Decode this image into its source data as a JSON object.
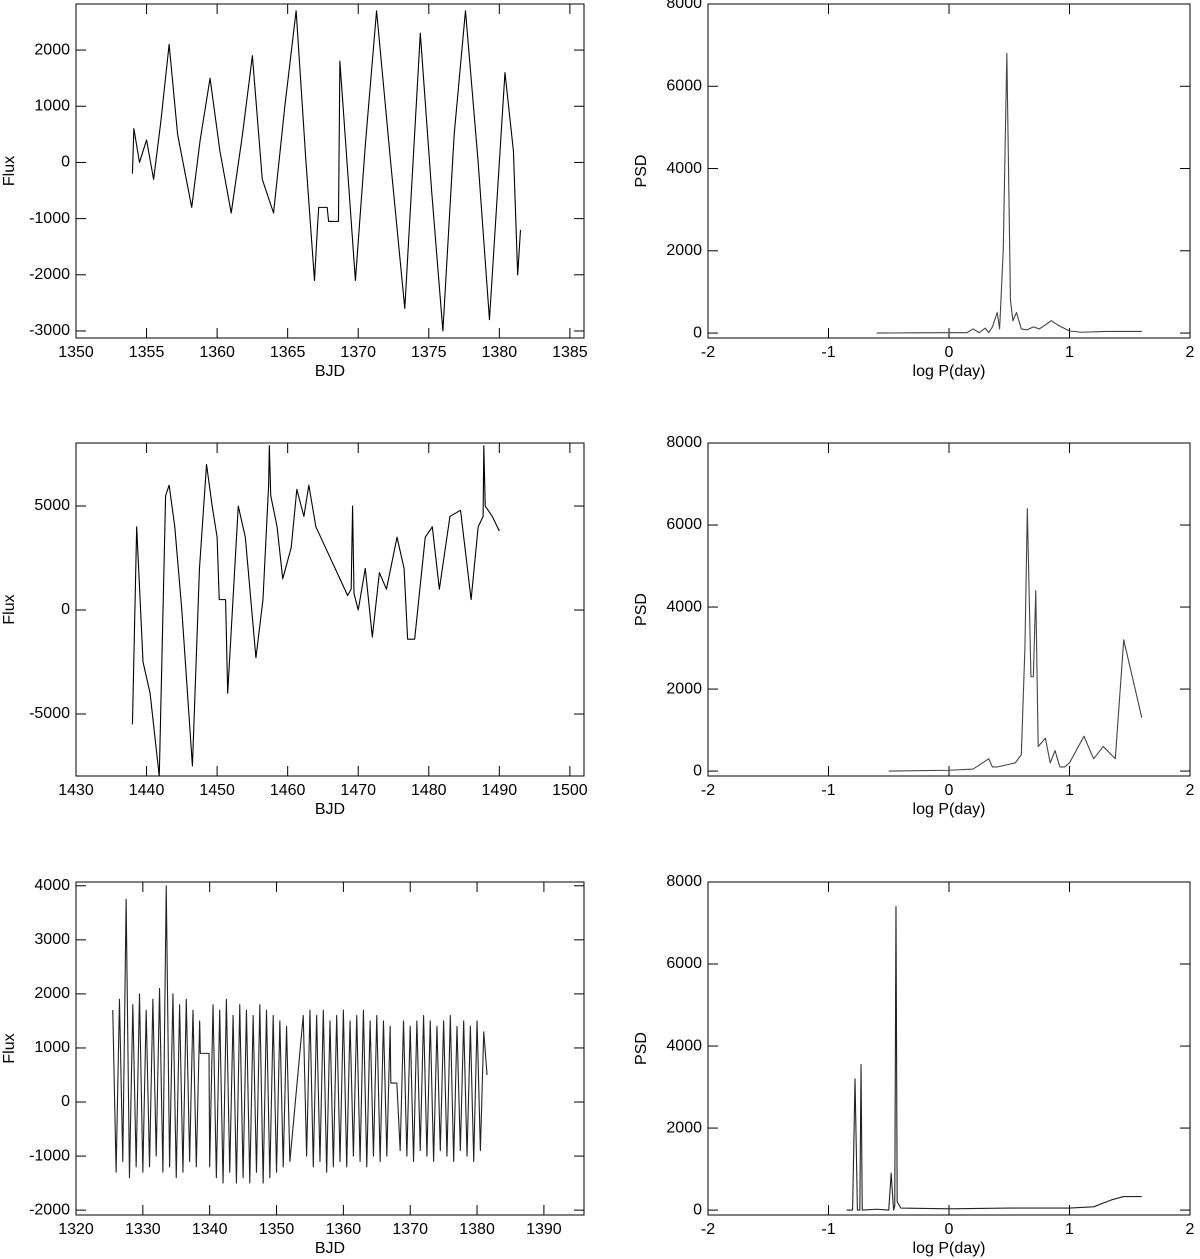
{
  "chart_data": [
    {
      "type": "line",
      "xlabel": "BJD",
      "ylabel": "Flux",
      "color": "#000000",
      "xlim": [
        1350,
        1386
      ],
      "ylim": [
        -3125,
        2820
      ],
      "xticks": [
        1350,
        1355,
        1360,
        1365,
        1370,
        1375,
        1380,
        1385
      ],
      "yticks": [
        -3000,
        -2000,
        -1000,
        0,
        1000,
        2000
      ],
      "x": [
        1354,
        1354.1,
        1354.5,
        1355,
        1355.5,
        1356,
        1356.6,
        1357.2,
        1358.2,
        1358.8,
        1359.5,
        1360.2,
        1361,
        1361.8,
        1362.5,
        1363.2,
        1364,
        1364.8,
        1365.6,
        1366.3,
        1366.9,
        1367.1,
        1367.2,
        1367.8,
        1367.9,
        1368.6,
        1368.7,
        1369.8,
        1370.5,
        1371.3,
        1372.3,
        1373.3,
        1374.4,
        1375.2,
        1376,
        1376.8,
        1377.6,
        1378.5,
        1379.3,
        1380.4,
        1381,
        1381.3,
        1381.5
      ],
      "values": [
        -200,
        600,
        0,
        400,
        -300,
        700,
        2100,
        500,
        -800,
        400,
        1500,
        200,
        -900,
        500,
        1900,
        -300,
        -900,
        1000,
        2700,
        0,
        -2100,
        -1200,
        -800,
        -800,
        -1050,
        -1050,
        1800,
        -2100,
        300,
        2700,
        0,
        -2600,
        2300,
        -500,
        -3000,
        500,
        2700,
        0,
        -2800,
        1600,
        200,
        -2000,
        -1200
      ]
    },
    {
      "type": "line",
      "xlabel": "log P(day)",
      "ylabel": "PSD",
      "color": "#444444",
      "xlim": [
        -2,
        2
      ],
      "ylim": [
        -120,
        8000
      ],
      "xticks": [
        -2,
        -1,
        0,
        1,
        2
      ],
      "yticks": [
        0,
        2000,
        4000,
        6000,
        8000
      ],
      "x": [
        -0.6,
        -0.3,
        0,
        0.15,
        0.2,
        0.25,
        0.3,
        0.33,
        0.36,
        0.4,
        0.42,
        0.45,
        0.48,
        0.51,
        0.53,
        0.56,
        0.6,
        0.65,
        0.7,
        0.75,
        0.8,
        0.85,
        0.9,
        1.0,
        1.1,
        1.3,
        1.6
      ],
      "values": [
        0,
        5,
        10,
        10,
        100,
        10,
        120,
        10,
        150,
        500,
        100,
        2000,
        6800,
        800,
        300,
        500,
        100,
        80,
        150,
        100,
        200,
        300,
        200,
        50,
        20,
        40,
        40
      ]
    },
    {
      "type": "line",
      "xlabel": "BJD",
      "ylabel": "Flux",
      "color": "#000000",
      "xlim": [
        1430,
        1502
      ],
      "ylim": [
        -7980,
        8030
      ],
      "xticks": [
        1430,
        1440,
        1450,
        1460,
        1470,
        1480,
        1490,
        1500
      ],
      "yticks": [
        -5000,
        0,
        5000
      ],
      "x": [
        1438,
        1438.6,
        1439.5,
        1440.5,
        1441.8,
        1442.7,
        1443.2,
        1444,
        1445,
        1446.5,
        1447.5,
        1448.5,
        1449.3,
        1450,
        1450.3,
        1451.2,
        1451.5,
        1453,
        1454,
        1455.5,
        1456.5,
        1457.3,
        1457.4,
        1457.6,
        1458.5,
        1459.3,
        1460.5,
        1461.3,
        1462.3,
        1463,
        1464,
        1468.5,
        1469,
        1469.2,
        1469.4,
        1470,
        1471,
        1472,
        1473,
        1474,
        1475.5,
        1476.5,
        1477,
        1478,
        1479.5,
        1480.5,
        1481.5,
        1483,
        1484.5,
        1486,
        1487,
        1487.7,
        1487.8,
        1488,
        1489,
        1490
      ],
      "values": [
        -5500,
        4000,
        -2500,
        -4000,
        -8000,
        5500,
        6000,
        4000,
        0,
        -7500,
        2000,
        7000,
        5000,
        3500,
        500,
        500,
        -4000,
        5000,
        3500,
        -2300,
        500,
        6000,
        7900,
        5500,
        4000,
        1500,
        3000,
        5800,
        4500,
        6000,
        4000,
        700,
        1000,
        5000,
        800,
        0,
        2000,
        -1300,
        1800,
        1000,
        3500,
        2000,
        -1400,
        -1400,
        3500,
        4000,
        1000,
        4500,
        4800,
        500,
        4000,
        4500,
        7900,
        5000,
        4500,
        3800
      ]
    },
    {
      "type": "line",
      "xlabel": "log P(day)",
      "ylabel": "PSD",
      "color": "#444444",
      "xlim": [
        -2,
        2
      ],
      "ylim": [
        -120,
        8000
      ],
      "xticks": [
        -2,
        -1,
        0,
        1,
        2
      ],
      "yticks": [
        0,
        2000,
        4000,
        6000,
        8000
      ],
      "x": [
        -0.5,
        0,
        0.2,
        0.33,
        0.36,
        0.4,
        0.55,
        0.6,
        0.63,
        0.65,
        0.68,
        0.7,
        0.72,
        0.74,
        0.77,
        0.8,
        0.84,
        0.88,
        0.92,
        0.96,
        1.0,
        1.12,
        1.2,
        1.28,
        1.38,
        1.45,
        1.6
      ],
      "values": [
        0,
        20,
        50,
        300,
        100,
        100,
        200,
        400,
        3000,
        6400,
        2300,
        2300,
        4400,
        600,
        700,
        800,
        200,
        500,
        100,
        100,
        200,
        850,
        300,
        600,
        300,
        3200,
        1300
      ]
    },
    {
      "type": "line",
      "xlabel": "BJD",
      "ylabel": "Flux",
      "color": "#222222",
      "xlim": [
        1320,
        1396
      ],
      "ylim": [
        -2090,
        4070
      ],
      "xticks": [
        1320,
        1330,
        1340,
        1350,
        1360,
        1370,
        1380,
        1390
      ],
      "yticks": [
        -2000,
        -1000,
        0,
        1000,
        2000,
        3000,
        4000
      ],
      "x": [
        1325.5,
        1326,
        1326.5,
        1327,
        1327.5,
        1328,
        1328.5,
        1329,
        1329.5,
        1330,
        1330.5,
        1331,
        1331.5,
        1332,
        1332.5,
        1333,
        1333.5,
        1334,
        1334.5,
        1335,
        1335.5,
        1336,
        1336.5,
        1337,
        1337.5,
        1338,
        1338.5,
        1338.6,
        1339.9,
        1340,
        1340.5,
        1341,
        1341.5,
        1342,
        1342.5,
        1343,
        1343.5,
        1344,
        1344.5,
        1345,
        1345.5,
        1346,
        1346.5,
        1347,
        1347.5,
        1348,
        1348.5,
        1349,
        1349.5,
        1350,
        1350.5,
        1351,
        1351.5,
        1352,
        1354,
        1354.5,
        1355,
        1355.5,
        1356,
        1356.5,
        1357,
        1357.5,
        1358,
        1358.5,
        1359,
        1359.5,
        1360,
        1360.5,
        1361,
        1361.5,
        1362,
        1362.5,
        1363,
        1363.5,
        1364,
        1364.5,
        1365,
        1365.5,
        1366,
        1366.5,
        1367,
        1367.1,
        1368,
        1368.5,
        1369,
        1369.5,
        1370,
        1370.5,
        1371,
        1371.5,
        1372,
        1372.5,
        1373,
        1373.5,
        1374,
        1374.5,
        1375,
        1375.5,
        1376,
        1376.5,
        1377,
        1377.5,
        1378,
        1378.5,
        1379,
        1379.5,
        1380,
        1380.5,
        1381,
        1381.5
      ],
      "values": [
        1700,
        -1300,
        1900,
        -1100,
        3750,
        -1400,
        1800,
        -1200,
        2000,
        -1300,
        1700,
        -1200,
        1900,
        -1000,
        2100,
        -1300,
        4000,
        -1200,
        2000,
        -1400,
        1800,
        -1300,
        1900,
        -1100,
        1700,
        -1200,
        1500,
        900,
        900,
        -1200,
        1800,
        -1400,
        1700,
        -1500,
        1900,
        -1300,
        1600,
        -1500,
        1800,
        -1400,
        1700,
        -1500,
        1600,
        -1300,
        1800,
        -1500,
        1700,
        -1400,
        1600,
        -1300,
        1500,
        -1200,
        1400,
        -1100,
        1600,
        -1000,
        1700,
        -1200,
        1600,
        -1100,
        1700,
        -1300,
        1500,
        -1200,
        1600,
        -1100,
        1700,
        -1200,
        1500,
        -1000,
        1600,
        -1100,
        1700,
        -1200,
        1500,
        -1000,
        1600,
        -1100,
        1500,
        -1000,
        1400,
        350,
        350,
        -900,
        1500,
        -1000,
        1400,
        -1100,
        1500,
        -900,
        1600,
        -1000,
        1500,
        -1100,
        1400,
        -900,
        1500,
        -1000,
        1600,
        -1100,
        1400,
        -900,
        1500,
        -1000,
        1400,
        -1100,
        1500,
        -900,
        1300,
        500
      ]
    },
    {
      "type": "line",
      "xlabel": "log P(day)",
      "ylabel": "PSD",
      "color": "#222222",
      "xlim": [
        -2,
        2
      ],
      "ylim": [
        -120,
        8000
      ],
      "xticks": [
        -2,
        -1,
        0,
        1,
        2
      ],
      "yticks": [
        0,
        2000,
        4000,
        6000,
        8000
      ],
      "x": [
        -0.85,
        -0.8,
        -0.78,
        -0.76,
        -0.74,
        -0.73,
        -0.72,
        -0.6,
        -0.5,
        -0.48,
        -0.46,
        -0.45,
        -0.44,
        -0.43,
        -0.4,
        0,
        0.5,
        1.0,
        1.2,
        1.35,
        1.45,
        1.6
      ],
      "values": [
        0,
        0,
        3200,
        0,
        0,
        3550,
        0,
        20,
        0,
        900,
        0,
        100,
        7400,
        200,
        50,
        30,
        50,
        50,
        80,
        250,
        330,
        330
      ]
    }
  ]
}
